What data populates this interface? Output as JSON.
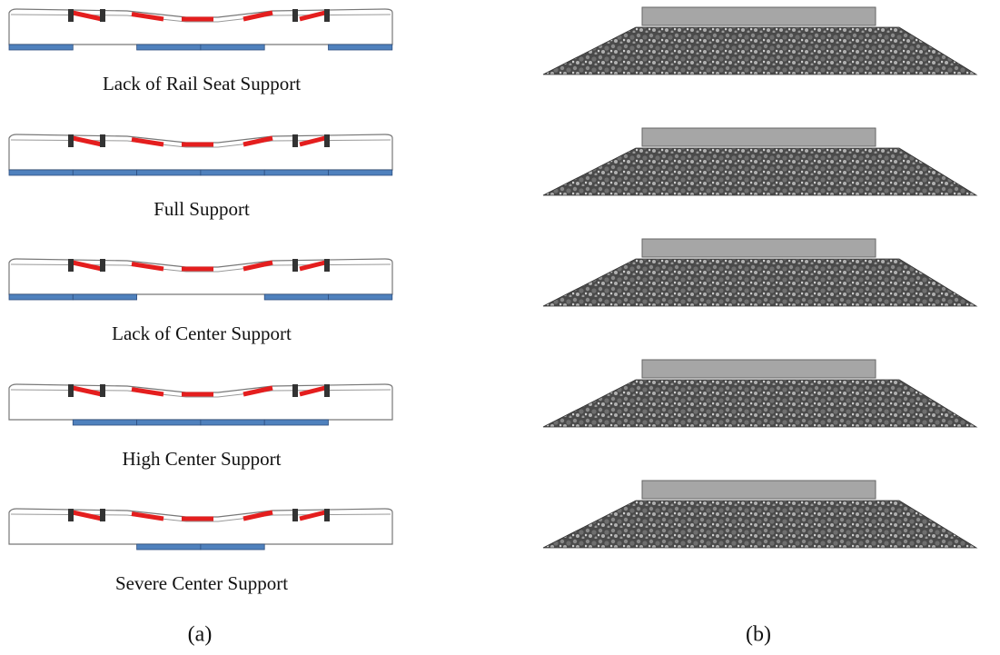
{
  "panel_a": {
    "captions": [
      "Lack of Rail Seat Support",
      "Full Support",
      "Lack of Center Support",
      "High Center Support",
      "Severe Center Support"
    ],
    "label": "(a)"
  },
  "panel_b": {
    "label": "(b)"
  }
}
